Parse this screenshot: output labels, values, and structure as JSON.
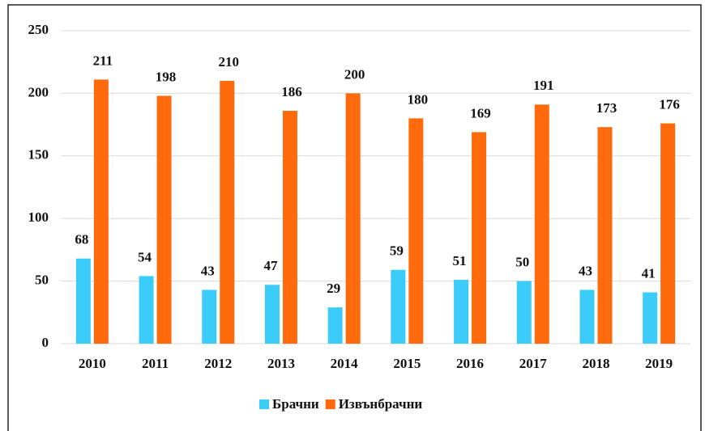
{
  "chart_data": {
    "type": "bar",
    "categories": [
      "2010",
      "2011",
      "2012",
      "2013",
      "2014",
      "2015",
      "2016",
      "2017",
      "2018",
      "2019"
    ],
    "series": [
      {
        "name": "Брачни",
        "color": "#3cccfa",
        "values": [
          68,
          54,
          43,
          47,
          29,
          59,
          51,
          50,
          43,
          41
        ]
      },
      {
        "name": "Извънбрачни",
        "color": "#ff6a0d",
        "values": [
          211,
          198,
          210,
          186,
          200,
          180,
          169,
          191,
          173,
          176
        ]
      }
    ],
    "ylim": [
      0,
      250
    ],
    "yticks": [
      0,
      50,
      100,
      150,
      200,
      250
    ],
    "grid": true,
    "legend": "bottom"
  }
}
